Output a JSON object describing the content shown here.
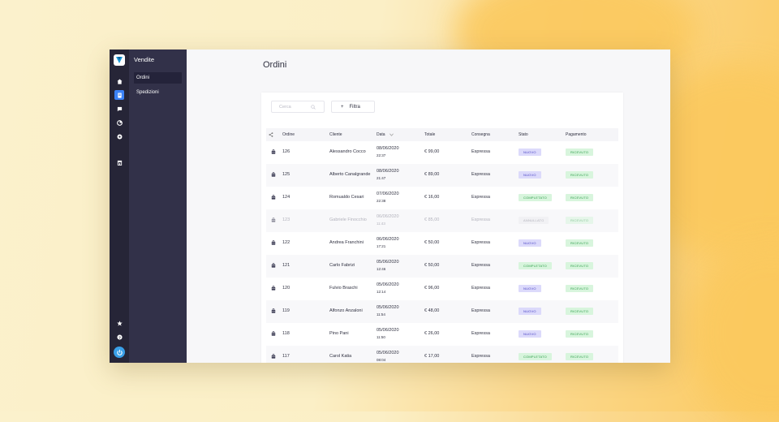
{
  "sidebar": {
    "section_title": "Vendite",
    "items": [
      {
        "label": "Ordini",
        "active": true
      },
      {
        "label": "Spedizioni",
        "active": false
      }
    ]
  },
  "rail": {
    "icons": [
      "home-icon",
      "receipt-icon",
      "chat-icon",
      "analytics-icon",
      "settings-icon",
      "store-icon",
      "star-icon",
      "help-icon",
      "power-icon"
    ]
  },
  "page": {
    "title": "Ordini"
  },
  "toolbar": {
    "search_placeholder": "Cerca",
    "filter_label": "Filtra"
  },
  "table": {
    "columns": [
      "Ordine",
      "Cliente",
      "Data",
      "Totale",
      "Consegna",
      "Stato",
      "Pagamento"
    ],
    "rows": [
      {
        "order": "126",
        "customer": "Alessandro Cocco",
        "date": "08/06/2020",
        "time": "22:37",
        "total": "€ 99,00",
        "delivery": "Espressa",
        "status": "NUOVO",
        "status_kind": "nuovo",
        "payment": "RICEVUTO"
      },
      {
        "order": "125",
        "customer": "Alberto Canalgrande",
        "date": "08/06/2020",
        "time": "21:47",
        "total": "€ 89,00",
        "delivery": "Espressa",
        "status": "NUOVO",
        "status_kind": "nuovo",
        "payment": "RICEVUTO"
      },
      {
        "order": "124",
        "customer": "Romualdo Cesari",
        "date": "07/06/2020",
        "time": "22:38",
        "total": "€ 16,00",
        "delivery": "Espressa",
        "status": "COMPLETATO",
        "status_kind": "completato",
        "payment": "RICEVUTO"
      },
      {
        "order": "123",
        "customer": "Gabriele Finocchio",
        "date": "06/06/2020",
        "time": "11:43",
        "total": "€ 85,00",
        "delivery": "Espressa",
        "status": "ANNULLATO",
        "status_kind": "annullato",
        "payment": "RICEVUTO"
      },
      {
        "order": "122",
        "customer": "Andrea Franchini",
        "date": "06/06/2020",
        "time": "17:21",
        "total": "€ 50,00",
        "delivery": "Espressa",
        "status": "NUOVO",
        "status_kind": "nuovo",
        "payment": "RICEVUTO"
      },
      {
        "order": "121",
        "customer": "Carlo Fabrizi",
        "date": "05/06/2020",
        "time": "12:46",
        "total": "€ 50,00",
        "delivery": "Espressa",
        "status": "COMPLETATO",
        "status_kind": "completato",
        "payment": "RICEVUTO"
      },
      {
        "order": "120",
        "customer": "Fulvio Braschi",
        "date": "05/06/2020",
        "time": "12:14",
        "total": "€ 96,00",
        "delivery": "Espressa",
        "status": "NUOVO",
        "status_kind": "nuovo",
        "payment": "RICEVUTO"
      },
      {
        "order": "119",
        "customer": "Alfonzo Anzaloni",
        "date": "05/06/2020",
        "time": "11:54",
        "total": "€ 48,00",
        "delivery": "Espressa",
        "status": "NUOVO",
        "status_kind": "nuovo",
        "payment": "RICEVUTO"
      },
      {
        "order": "118",
        "customer": "Pino Pani",
        "date": "05/06/2020",
        "time": "11:50",
        "total": "€ 26,00",
        "delivery": "Espressa",
        "status": "NUOVO",
        "status_kind": "nuovo",
        "payment": "RICEVUTO"
      },
      {
        "order": "117",
        "customer": "Carol Katia",
        "date": "05/06/2020",
        "time": "08:04",
        "total": "€ 17,00",
        "delivery": "Espressa",
        "status": "COMPLETATO",
        "status_kind": "completato",
        "payment": "RICEVUTO"
      }
    ]
  },
  "colors": {
    "rail": "#262537",
    "subnav": "#323149",
    "accent": "#3b82f6",
    "badge_new": "#dcdafb",
    "badge_done": "#d8f5dd",
    "badge_cancelled": "#ececf0"
  }
}
